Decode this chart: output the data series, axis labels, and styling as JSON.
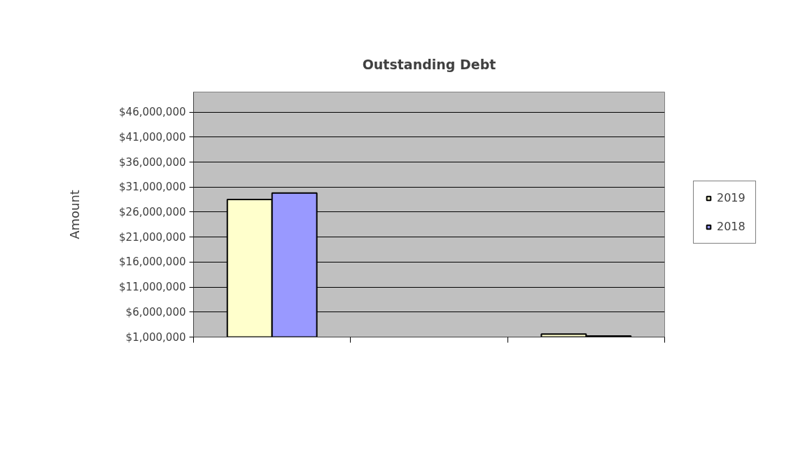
{
  "chart_data": {
    "type": "bar",
    "title": "Outstanding Debt",
    "ylabel": "Amount",
    "categories": [
      null,
      null,
      null
    ],
    "series": [
      {
        "name": "2019",
        "color": "#ffffcc",
        "values": [
          28500000,
          null,
          1600000
        ]
      },
      {
        "name": "2018",
        "color": "#9999ff",
        "values": [
          29800000,
          null,
          1200000
        ]
      }
    ],
    "ylim": [
      1000000,
      50000000
    ],
    "yticks": [
      {
        "value": 1000000,
        "label": "$1,000,000"
      },
      {
        "value": 6000000,
        "label": "$6,000,000"
      },
      {
        "value": 11000000,
        "label": "$11,000,000"
      },
      {
        "value": 16000000,
        "label": "$16,000,000"
      },
      {
        "value": 21000000,
        "label": "$21,000,000"
      },
      {
        "value": 26000000,
        "label": "$26,000,000"
      },
      {
        "value": 31000000,
        "label": "$31,000,000"
      },
      {
        "value": 36000000,
        "label": "$36,000,000"
      },
      {
        "value": 41000000,
        "label": "$41,000,000"
      },
      {
        "value": 46000000,
        "label": "$46,000,000"
      }
    ],
    "grid": "y",
    "legend": "right",
    "tick_labels": "y"
  }
}
